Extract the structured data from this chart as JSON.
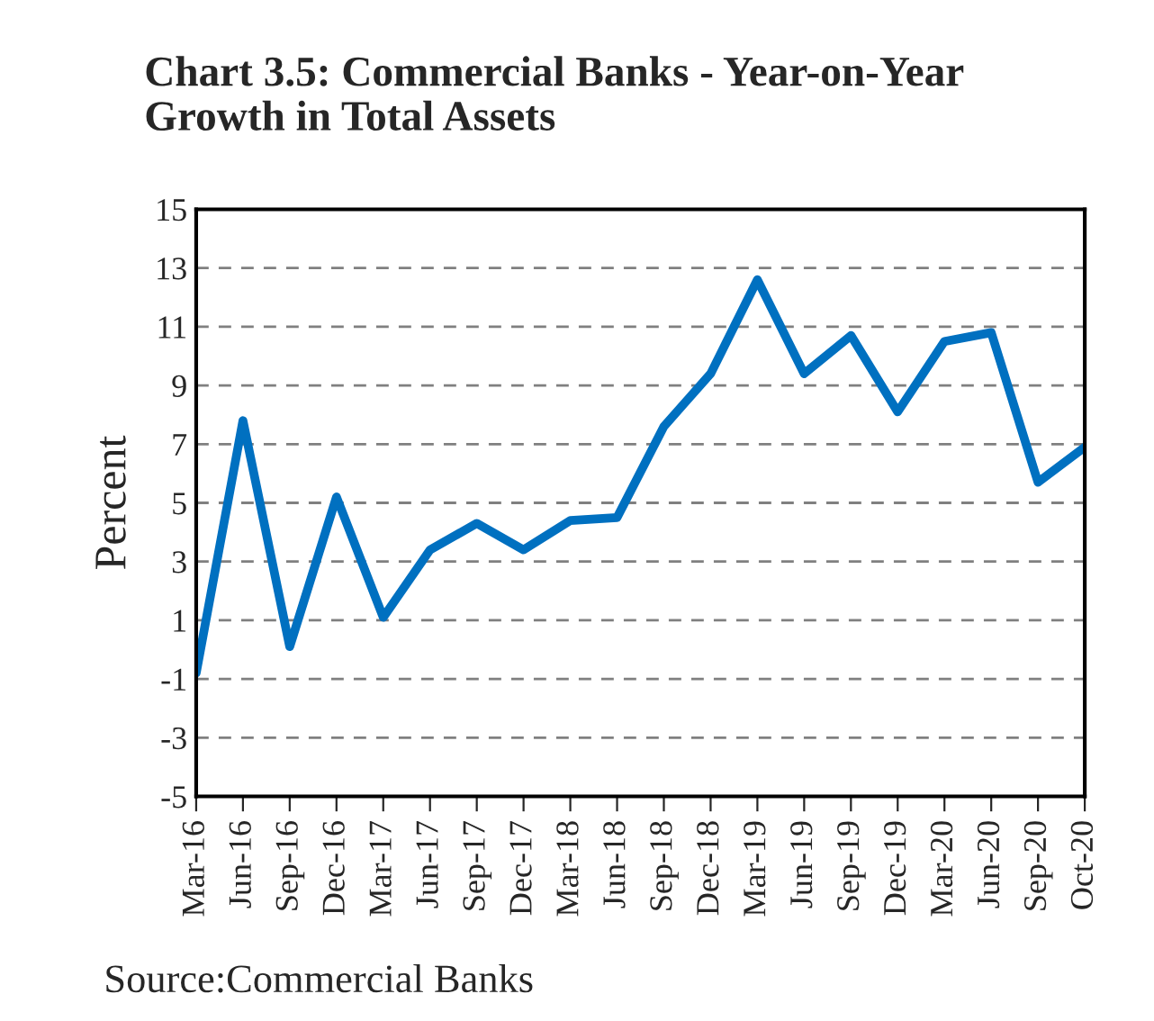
{
  "chart_data": {
    "type": "line",
    "title": "Chart 3.5: Commercial Banks - Year-on-Year\nGrowth in Total Assets",
    "ylabel": "Percent",
    "categories": [
      "Mar-16",
      "Jun-16",
      "Sep-16",
      "Dec-16",
      "Mar-17",
      "Jun-17",
      "Sep-17",
      "Dec-17",
      "Mar-18",
      "Jun-18",
      "Sep-18",
      "Dec-18",
      "Mar-19",
      "Jun-19",
      "Sep-19",
      "Dec-19",
      "Mar-20",
      "Jun-20",
      "Sep-20",
      "Oct-20"
    ],
    "series": [
      {
        "color": "#0070c0",
        "values": [
          -0.8,
          7.8,
          0.1,
          5.2,
          1.1,
          3.4,
          4.3,
          3.4,
          4.4,
          4.5,
          7.6,
          9.4,
          12.6,
          9.4,
          10.7,
          8.1,
          10.5,
          10.8,
          5.7,
          6.9
        ]
      }
    ],
    "ylim": [
      -5,
      15
    ],
    "yticks": [
      -5,
      -3,
      -1,
      1,
      3,
      5,
      7,
      9,
      11,
      13,
      15
    ],
    "grid": "y",
    "line_style": "solid",
    "marker": "none",
    "legend": false,
    "annotations": [
      "Source:Commercial Banks"
    ]
  }
}
